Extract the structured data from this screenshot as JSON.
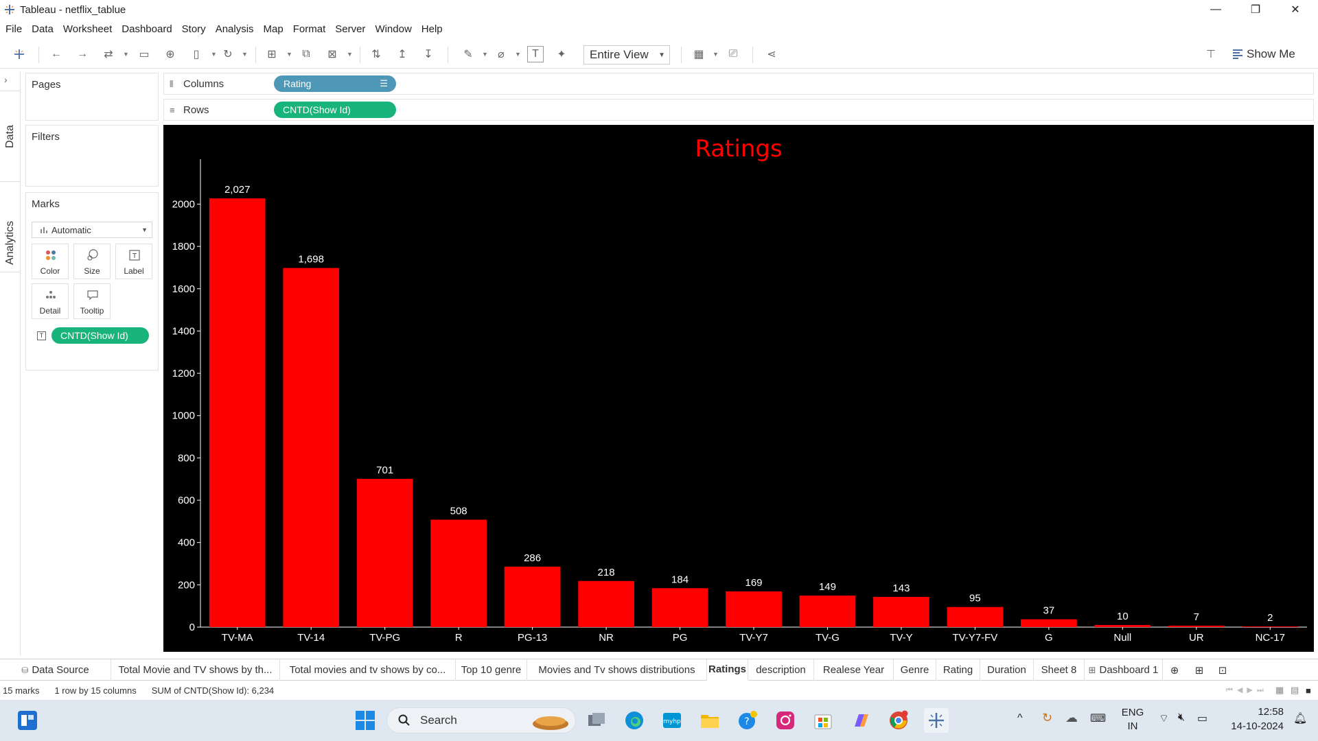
{
  "window": {
    "title": "Tableau - netflix_tablue",
    "controls": {
      "minimize": "—",
      "restore": "❐",
      "close": "✕"
    }
  },
  "menu": [
    "File",
    "Data",
    "Worksheet",
    "Dashboard",
    "Story",
    "Analysis",
    "Map",
    "Format",
    "Server",
    "Window",
    "Help"
  ],
  "toolbar": {
    "fit": "Entire View",
    "show_me": "Show Me"
  },
  "side_tabs": {
    "data": "Data",
    "analytics": "Analytics"
  },
  "cards": {
    "pages": "Pages",
    "filters": "Filters",
    "marks": {
      "title": "Marks",
      "type": "Automatic",
      "buttons": [
        "Color",
        "Size",
        "Label",
        "Detail",
        "Tooltip"
      ],
      "pill": "CNTD(Show Id)"
    }
  },
  "shelves": {
    "columns_label": "Columns",
    "columns_pill": "Rating",
    "rows_label": "Rows",
    "rows_pill": "CNTD(Show Id)"
  },
  "chart_data": {
    "type": "bar",
    "title": "Ratings",
    "categories": [
      "TV-MA",
      "TV-14",
      "TV-PG",
      "R",
      "PG-13",
      "NR",
      "PG",
      "TV-Y7",
      "TV-G",
      "TV-Y",
      "TV-Y7-FV",
      "G",
      "Null",
      "UR",
      "NC-17"
    ],
    "values": [
      2027,
      1698,
      701,
      508,
      286,
      218,
      184,
      169,
      149,
      143,
      95,
      37,
      10,
      7,
      2
    ],
    "value_labels": [
      "2,027",
      "1,698",
      "701",
      "508",
      "286",
      "218",
      "184",
      "169",
      "149",
      "143",
      "95",
      "37",
      "10",
      "7",
      "2"
    ],
    "yticks": [
      0,
      200,
      400,
      600,
      800,
      1000,
      1200,
      1400,
      1600,
      1800,
      2000
    ],
    "ylim": [
      0,
      2180
    ],
    "bar_color": "#ff0000",
    "title_color": "#ff0000",
    "background": "#000000"
  },
  "tabs": [
    "Data Source",
    "Total Movie and TV shows by th...",
    "Total movies and tv shows by co...",
    "Top 10 genre",
    "Movies and Tv shows distributions",
    "Ratings",
    "description",
    "Realese Year",
    "Genre",
    "Rating",
    "Duration",
    "Sheet 8",
    "Dashboard 1"
  ],
  "active_tab": "Ratings",
  "status": {
    "marks": "15 marks",
    "rows_cols": "1 row by 15 columns",
    "sum": "SUM of CNTD(Show Id): 6,234"
  },
  "taskbar": {
    "search": "Search",
    "lang_top": "ENG",
    "lang_bottom": "IN",
    "time": "12:58",
    "date": "14-10-2024"
  }
}
